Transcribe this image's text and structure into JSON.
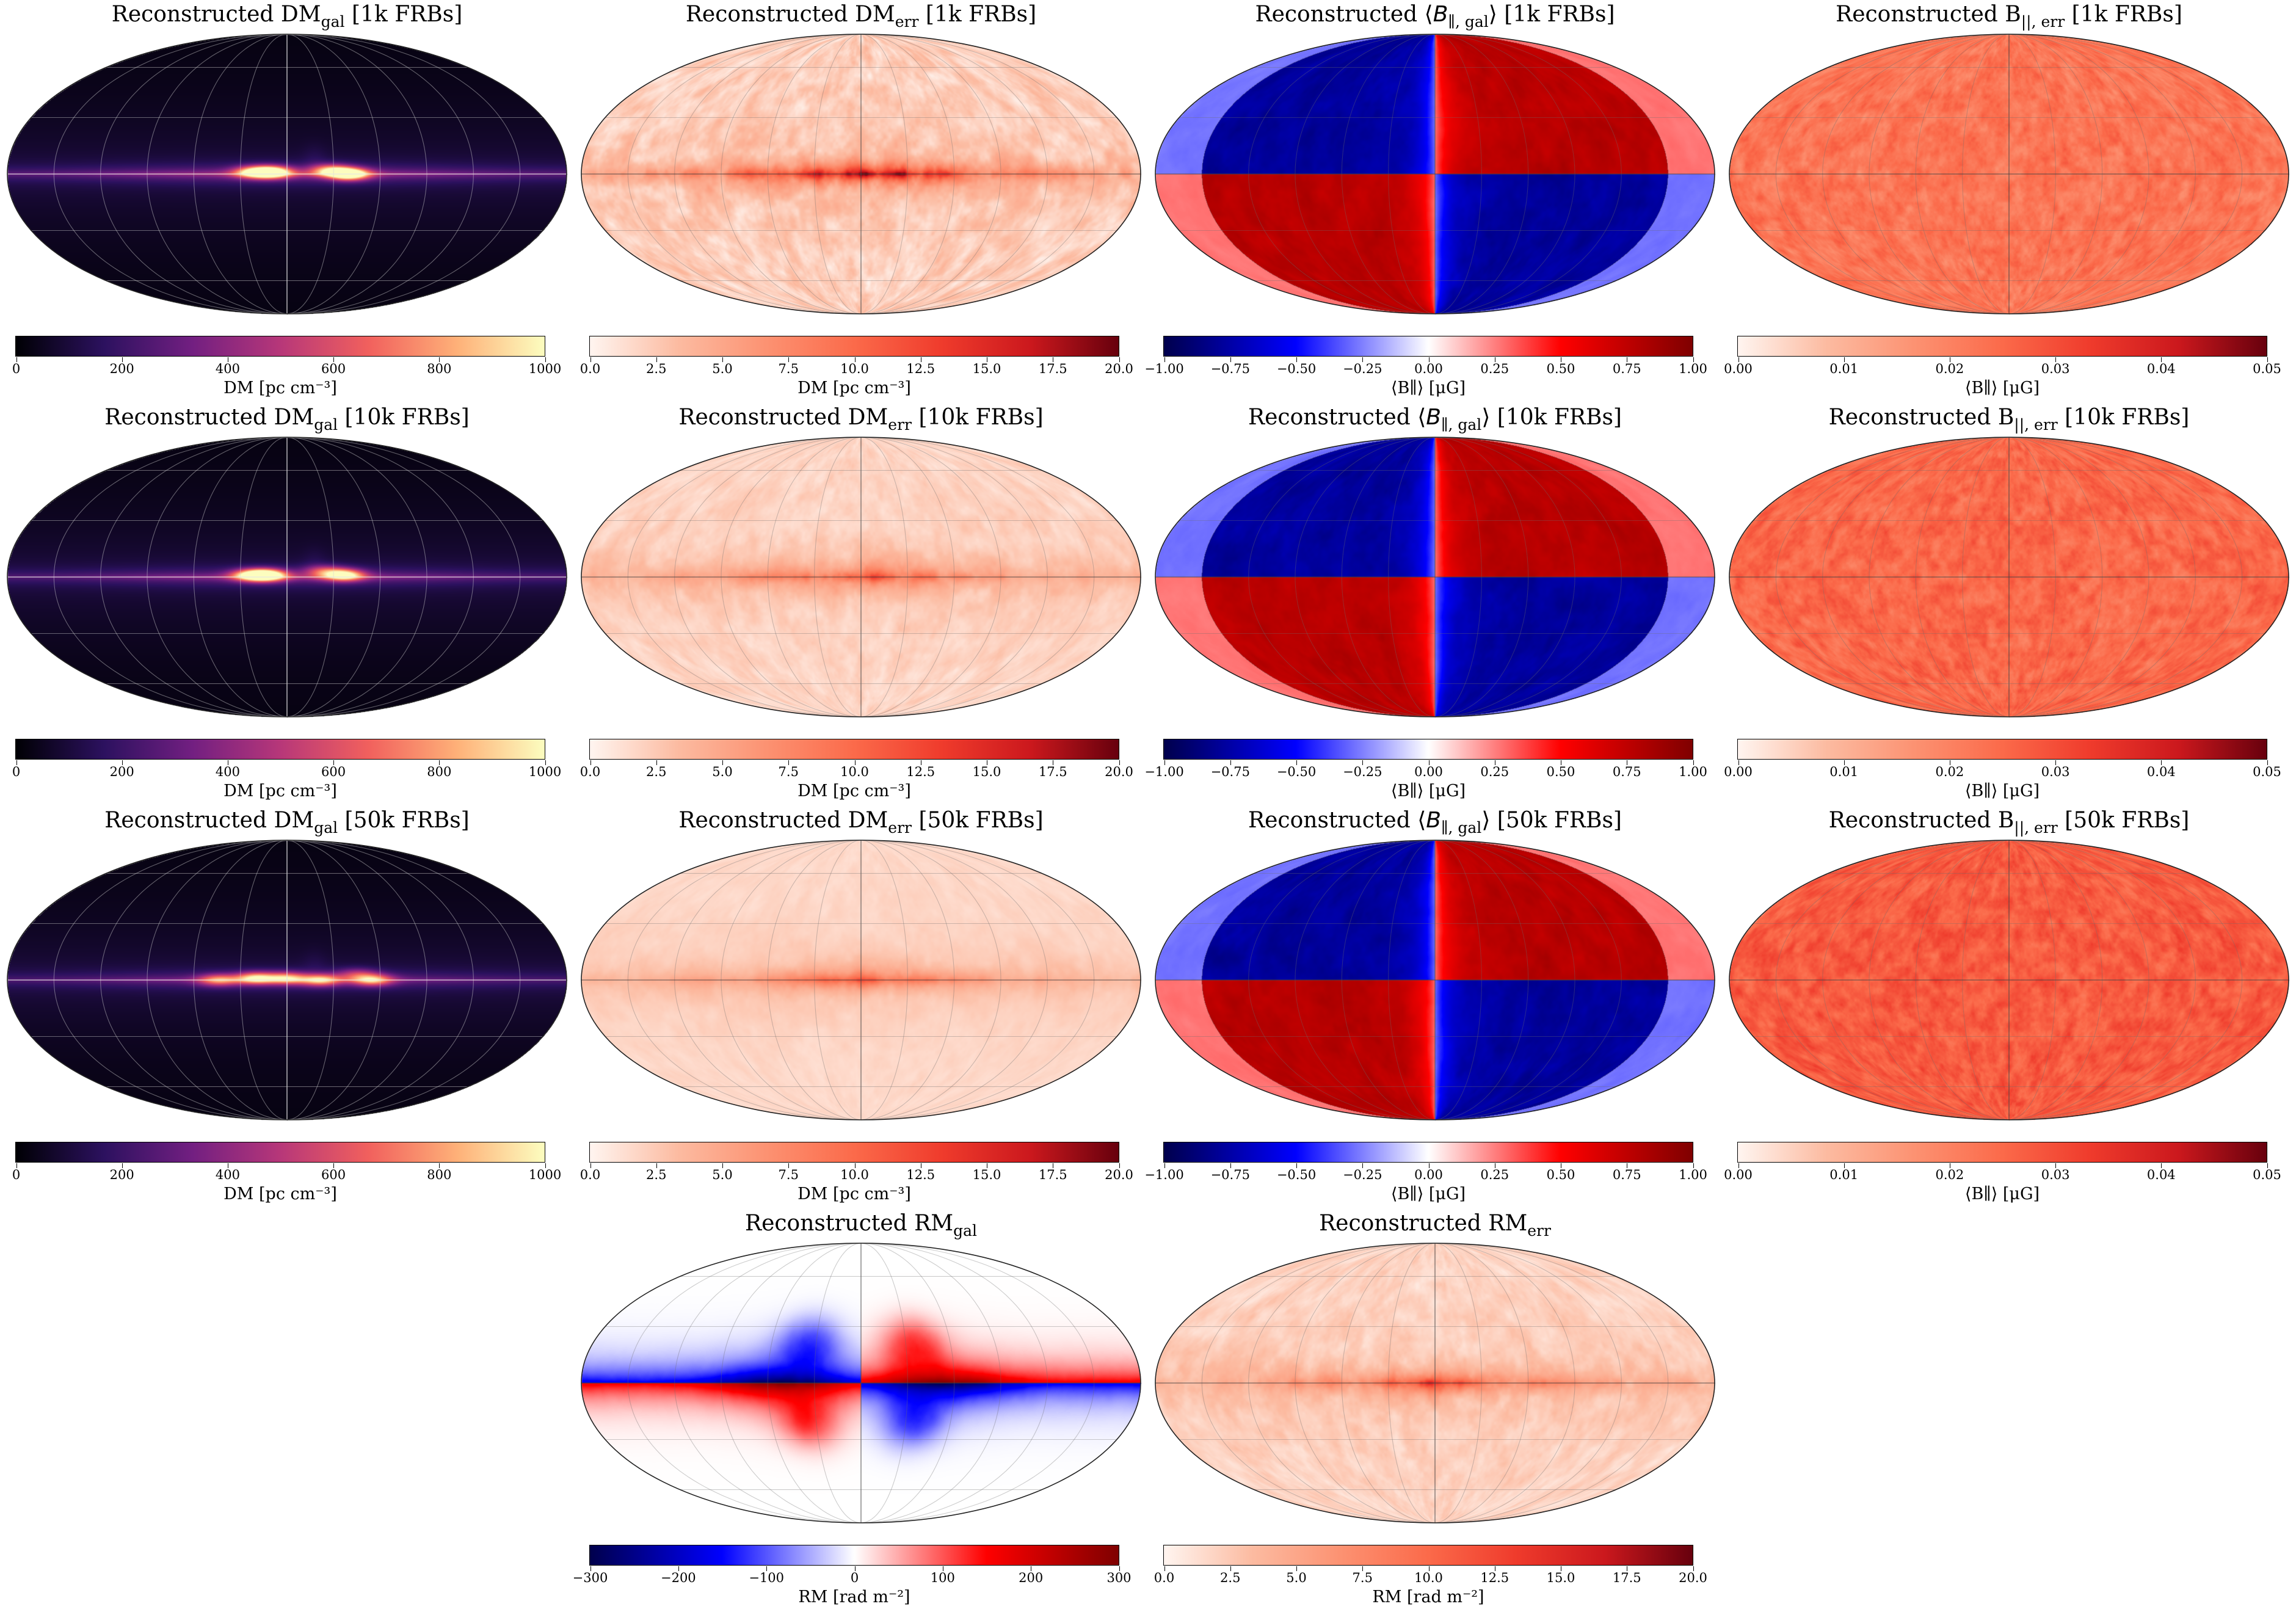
{
  "chart_data": [
    {
      "type": "heatmap",
      "projection": "mollweide",
      "title": "Reconstructed DMgal [1k FRBs]",
      "title_main": "Reconstructed DM",
      "title_sub": "gal",
      "title_suffix": " [1k FRBs]",
      "colormap": "magma",
      "cmap_colors": [
        "#000004",
        "#2c115f",
        "#721f81",
        "#b73779",
        "#f1605d",
        "#feb078",
        "#fcfdbf"
      ],
      "style": "dm",
      "band_strength": 1.0,
      "clumps": [
        [
          -40,
          0,
          1.0
        ],
        [
          10,
          1,
          1.0
        ],
        [
          -28,
          2,
          0.6
        ],
        [
          22,
          1,
          0.6
        ]
      ],
      "range": [
        0,
        1000
      ],
      "ticks": [
        0,
        200,
        400,
        600,
        800,
        1000
      ],
      "tick_labels": [
        "0",
        "200",
        "400",
        "600",
        "800",
        "1000"
      ],
      "colorbar_label": "DM [pc cm⁻³]"
    },
    {
      "type": "heatmap",
      "projection": "mollweide",
      "title": "Reconstructed DMerr [1k FRBs]",
      "title_main": "Reconstructed DM",
      "title_sub": "err",
      "title_suffix": " [1k FRBs]",
      "colormap": "Reds",
      "cmap_colors": [
        "#fff5f0",
        "#fcbba1",
        "#fc9272",
        "#fb6a4a",
        "#ef3b2c",
        "#cb181d",
        "#67000d"
      ],
      "style": "err",
      "band_strength": 1.0,
      "noise": 0.22,
      "range": [
        0,
        20
      ],
      "ticks": [
        0,
        2.5,
        5,
        7.5,
        10,
        12.5,
        15,
        17.5,
        20
      ],
      "tick_labels": [
        "0.0",
        "2.5",
        "5.0",
        "7.5",
        "10.0",
        "12.5",
        "15.0",
        "17.5",
        "20.0"
      ],
      "colorbar_label": "DM [pc cm⁻³]"
    },
    {
      "type": "heatmap",
      "projection": "mollweide",
      "title": "Reconstructed ⟨B∥,gal⟩ [1k FRBs]",
      "title_main": "Reconstructed ⟨",
      "title_italic": "B",
      "title_sub": "∥, gal",
      "title_close": "⟩",
      "title_suffix": " [1k FRBs]",
      "colormap": "seismic",
      "cmap_colors": [
        "#00004c",
        "#0000ff",
        "#ffffff",
        "#ff0000",
        "#7f0000"
      ],
      "style": "quad",
      "strength": 1.0,
      "range": [
        -1,
        1
      ],
      "ticks": [
        -1,
        -0.75,
        -0.5,
        -0.25,
        0,
        0.25,
        0.5,
        0.75,
        1
      ],
      "tick_labels": [
        "−1.00",
        "−0.75",
        "−0.50",
        "−0.25",
        "0.00",
        "0.25",
        "0.50",
        "0.75",
        "1.00"
      ],
      "colorbar_label": "⟨B∥⟩ [μG]"
    },
    {
      "type": "heatmap",
      "projection": "mollweide",
      "title": "Reconstructed B||,err [1k FRBs]",
      "title_main": "Reconstructed B",
      "title_sub": "||, err",
      "title_suffix": " [1k FRBs]",
      "colormap": "Reds",
      "cmap_colors": [
        "#fff5f0",
        "#fcbba1",
        "#fc9272",
        "#fb6a4a",
        "#ef3b2c",
        "#cb181d",
        "#67000d"
      ],
      "style": "uniform",
      "level": 0.45,
      "range": [
        0,
        0.05
      ],
      "ticks": [
        0,
        0.01,
        0.02,
        0.03,
        0.04,
        0.05
      ],
      "tick_labels": [
        "0.00",
        "0.01",
        "0.02",
        "0.03",
        "0.04",
        "0.05"
      ],
      "colorbar_label": "⟨B∥⟩ [μG]"
    },
    {
      "type": "heatmap",
      "projection": "mollweide",
      "title": "Reconstructed DMgal [10k FRBs]",
      "title_main": "Reconstructed DM",
      "title_sub": "gal",
      "title_suffix": " [10k FRBs]",
      "colormap": "magma",
      "cmap_colors": [
        "#000004",
        "#2c115f",
        "#721f81",
        "#b73779",
        "#f1605d",
        "#feb078",
        "#fcfdbf"
      ],
      "style": "dm",
      "band_strength": 0.85,
      "clumps": [
        [
          -37,
          1,
          0.8
        ],
        [
          13,
          1,
          1.0
        ],
        [
          -24,
          3,
          0.4
        ],
        [
          24,
          1,
          0.6
        ]
      ],
      "range": [
        0,
        1000
      ],
      "ticks": [
        0,
        200,
        400,
        600,
        800,
        1000
      ],
      "tick_labels": [
        "0",
        "200",
        "400",
        "600",
        "800",
        "1000"
      ],
      "colorbar_label": "DM [pc cm⁻³]"
    },
    {
      "type": "heatmap",
      "projection": "mollweide",
      "title": "Reconstructed DMerr [10k FRBs]",
      "title_main": "Reconstructed DM",
      "title_sub": "err",
      "title_suffix": " [10k FRBs]",
      "colormap": "Reds",
      "cmap_colors": [
        "#fff5f0",
        "#fcbba1",
        "#fc9272",
        "#fb6a4a",
        "#ef3b2c",
        "#cb181d",
        "#67000d"
      ],
      "style": "err",
      "band_strength": 0.6,
      "noise": 0.12,
      "range": [
        0,
        20
      ],
      "ticks": [
        0,
        2.5,
        5,
        7.5,
        10,
        12.5,
        15,
        17.5,
        20
      ],
      "tick_labels": [
        "0.0",
        "2.5",
        "5.0",
        "7.5",
        "10.0",
        "12.5",
        "15.0",
        "17.5",
        "20.0"
      ],
      "colorbar_label": "DM [pc cm⁻³]"
    },
    {
      "type": "heatmap",
      "projection": "mollweide",
      "title": "Reconstructed ⟨B∥,gal⟩ [10k FRBs]",
      "title_main": "Reconstructed ⟨",
      "title_italic": "B",
      "title_sub": "∥, gal",
      "title_close": "⟩",
      "title_suffix": " [10k FRBs]",
      "colormap": "seismic",
      "cmap_colors": [
        "#00004c",
        "#0000ff",
        "#ffffff",
        "#ff0000",
        "#7f0000"
      ],
      "style": "quad",
      "strength": 1.0,
      "range": [
        -1,
        1
      ],
      "ticks": [
        -1,
        -0.75,
        -0.5,
        -0.25,
        0,
        0.25,
        0.5,
        0.75,
        1
      ],
      "tick_labels": [
        "−1.00",
        "−0.75",
        "−0.50",
        "−0.25",
        "0.00",
        "0.25",
        "0.50",
        "0.75",
        "1.00"
      ],
      "colorbar_label": "⟨B∥⟩ [μG]"
    },
    {
      "type": "heatmap",
      "projection": "mollweide",
      "title": "Reconstructed B||,err [10k FRBs]",
      "title_main": "Reconstructed B",
      "title_sub": "||, err",
      "title_suffix": " [10k FRBs]",
      "colormap": "Reds",
      "cmap_colors": [
        "#fff5f0",
        "#fcbba1",
        "#fc9272",
        "#fb6a4a",
        "#ef3b2c",
        "#cb181d",
        "#67000d"
      ],
      "style": "uniform",
      "level": 0.5,
      "range": [
        0,
        0.05
      ],
      "ticks": [
        0,
        0.01,
        0.02,
        0.03,
        0.04,
        0.05
      ],
      "tick_labels": [
        "0.00",
        "0.01",
        "0.02",
        "0.03",
        "0.04",
        "0.05"
      ],
      "colorbar_label": "⟨B∥⟩ [μG]"
    },
    {
      "type": "heatmap",
      "projection": "mollweide",
      "title": "Reconstructed DMgal [50k FRBs]",
      "title_main": "Reconstructed DM",
      "title_sub": "gal",
      "title_suffix": " [50k FRBs]",
      "colormap": "magma",
      "cmap_colors": [
        "#000004",
        "#2c115f",
        "#721f81",
        "#b73779",
        "#f1605d",
        "#feb078",
        "#fcfdbf"
      ],
      "style": "dm",
      "band_strength": 0.8,
      "clumps": [
        [
          -55,
          0,
          0.6
        ],
        [
          -22,
          0,
          0.6
        ],
        [
          0,
          1,
          0.6
        ],
        [
          20,
          1,
          0.7
        ],
        [
          44,
          0,
          0.5
        ],
        [
          -45,
          3,
          0.3
        ]
      ],
      "range": [
        0,
        1000
      ],
      "ticks": [
        0,
        200,
        400,
        600,
        800,
        1000
      ],
      "tick_labels": [
        "0",
        "200",
        "400",
        "600",
        "800",
        "1000"
      ],
      "colorbar_label": "DM [pc cm⁻³]"
    },
    {
      "type": "heatmap",
      "projection": "mollweide",
      "title": "Reconstructed DMerr [50k FRBs]",
      "title_main": "Reconstructed DM",
      "title_sub": "err",
      "title_suffix": " [50k FRBs]",
      "colormap": "Reds",
      "cmap_colors": [
        "#fff5f0",
        "#fcbba1",
        "#fc9272",
        "#fb6a4a",
        "#ef3b2c",
        "#cb181d",
        "#67000d"
      ],
      "style": "err",
      "band_strength": 0.5,
      "noise": 0.06,
      "range": [
        0,
        20
      ],
      "ticks": [
        0,
        2.5,
        5,
        7.5,
        10,
        12.5,
        15,
        17.5,
        20
      ],
      "tick_labels": [
        "0.0",
        "2.5",
        "5.0",
        "7.5",
        "10.0",
        "12.5",
        "15.0",
        "17.5",
        "20.0"
      ],
      "colorbar_label": "DM [pc cm⁻³]"
    },
    {
      "type": "heatmap",
      "projection": "mollweide",
      "title": "Reconstructed ⟨B∥,gal⟩ [50k FRBs]",
      "title_main": "Reconstructed ⟨",
      "title_italic": "B",
      "title_sub": "∥, gal",
      "title_close": "⟩",
      "title_suffix": " [50k FRBs]",
      "colormap": "seismic",
      "cmap_colors": [
        "#00004c",
        "#0000ff",
        "#ffffff",
        "#ff0000",
        "#7f0000"
      ],
      "style": "quad",
      "strength": 1.0,
      "range": [
        -1,
        1
      ],
      "ticks": [
        -1,
        -0.75,
        -0.5,
        -0.25,
        0,
        0.25,
        0.5,
        0.75,
        1
      ],
      "tick_labels": [
        "−1.00",
        "−0.75",
        "−0.50",
        "−0.25",
        "0.00",
        "0.25",
        "0.50",
        "0.75",
        "1.00"
      ],
      "colorbar_label": "⟨B∥⟩ [μG]"
    },
    {
      "type": "heatmap",
      "projection": "mollweide",
      "title": "Reconstructed B||,err [50k FRBs]",
      "title_main": "Reconstructed B",
      "title_sub": "||, err",
      "title_suffix": " [50k FRBs]",
      "colormap": "Reds",
      "cmap_colors": [
        "#fff5f0",
        "#fcbba1",
        "#fc9272",
        "#fb6a4a",
        "#ef3b2c",
        "#cb181d",
        "#67000d"
      ],
      "style": "uniform",
      "level": 0.55,
      "range": [
        0,
        0.05
      ],
      "ticks": [
        0,
        0.01,
        0.02,
        0.03,
        0.04,
        0.05
      ],
      "tick_labels": [
        "0.00",
        "0.01",
        "0.02",
        "0.03",
        "0.04",
        "0.05"
      ],
      "colorbar_label": "⟨B∥⟩ [μG]"
    },
    {
      "type": "heatmap",
      "projection": "mollweide",
      "title": "Reconstructed RMgal",
      "title_main": "Reconstructed RM",
      "title_sub": "gal",
      "title_suffix": "",
      "colormap": "seismic",
      "cmap_colors": [
        "#00004c",
        "#0000ff",
        "#ffffff",
        "#ff0000",
        "#7f0000"
      ],
      "style": "rm",
      "strength": 1.0,
      "range": [
        -300,
        300
      ],
      "ticks": [
        -300,
        -200,
        -100,
        0,
        100,
        200,
        300
      ],
      "tick_labels": [
        "−300",
        "−200",
        "−100",
        "0",
        "100",
        "200",
        "300"
      ],
      "colorbar_label": "RM [rad m⁻²]"
    },
    {
      "type": "heatmap",
      "projection": "mollweide",
      "title": "Reconstructed RMerr",
      "title_main": "Reconstructed RM",
      "title_sub": "err",
      "title_suffix": "",
      "colormap": "Reds",
      "cmap_colors": [
        "#fff5f0",
        "#fcbba1",
        "#fc9272",
        "#fb6a4a",
        "#ef3b2c",
        "#cb181d",
        "#67000d"
      ],
      "style": "err",
      "band_strength": 0.6,
      "noise": 0.14,
      "range": [
        0,
        20
      ],
      "ticks": [
        0,
        2.5,
        5,
        7.5,
        10,
        12.5,
        15,
        17.5,
        20
      ],
      "tick_labels": [
        "0.0",
        "2.5",
        "5.0",
        "7.5",
        "10.0",
        "12.5",
        "15.0",
        "17.5",
        "20.0"
      ],
      "colorbar_label": "RM [rad m⁻²]"
    }
  ]
}
